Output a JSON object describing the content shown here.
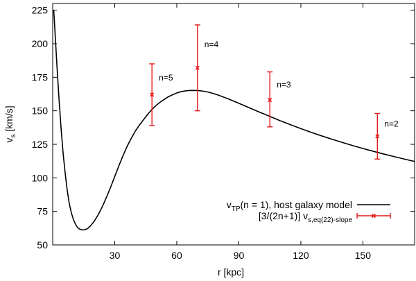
{
  "chart_data": {
    "type": "line",
    "title": "",
    "xlabel": "r [kpc]",
    "ylabel": {
      "main": "v",
      "sub": "s",
      "unit": " [km/s]"
    },
    "xlim": [
      0,
      175
    ],
    "ylim": [
      50,
      230
    ],
    "xticks": [
      30,
      60,
      90,
      120,
      150
    ],
    "yticks": [
      50,
      75,
      100,
      125,
      150,
      175,
      200,
      225
    ],
    "grid": false,
    "legend_position": "bottom-right",
    "series": [
      {
        "name": "vTP(n = 1), host galaxy model",
        "legend": {
          "pre": "v",
          "sub": "TP",
          "post": "(n = 1), host galaxy model"
        },
        "type": "line",
        "color": "#000000",
        "x": [
          0.5,
          1,
          2,
          3,
          4,
          5,
          6,
          7,
          8,
          9,
          10,
          11,
          12,
          13,
          14,
          15,
          16,
          17,
          18,
          19,
          20,
          22,
          24,
          26,
          28,
          30,
          32,
          34,
          36,
          38,
          40,
          42,
          44,
          46,
          48,
          50,
          52,
          54,
          56,
          58,
          60,
          62,
          64,
          66,
          68,
          70,
          72,
          74,
          76,
          78,
          80,
          85,
          90,
          95,
          100,
          105,
          110,
          115,
          120,
          125,
          130,
          135,
          140,
          145,
          150,
          155,
          160,
          165,
          170,
          175
        ],
        "y": [
          225,
          212,
          185,
          160,
          138,
          119,
          104,
          91,
          81,
          74,
          69,
          65.5,
          63,
          61.8,
          61.3,
          61.2,
          61.6,
          62.4,
          63.8,
          65.5,
          67.5,
          72.5,
          78.5,
          85.5,
          93,
          101,
          109,
          116.5,
          123.5,
          129.5,
          135,
          139.5,
          143.5,
          147.5,
          151,
          154,
          156.5,
          158.5,
          160.5,
          162,
          163.3,
          164.2,
          164.8,
          165.1,
          165.2,
          165.1,
          164.8,
          164.3,
          163.6,
          162.7,
          161.7,
          158.8,
          155.6,
          152.3,
          149,
          145.8,
          142.6,
          139.6,
          136.7,
          133.9,
          131.3,
          128.8,
          126.4,
          124.1,
          121.9,
          119.8,
          117.8,
          115.9,
          114,
          112.2
        ]
      },
      {
        "name": "[3/(2n+1)] vs,eq(22)-slope",
        "legend": {
          "pre": "[3/(2n+1)] v",
          "sub": "s,eq(22)-slope",
          "post": ""
        },
        "type": "scatter-errorbar",
        "color": "#e41a1c",
        "points": [
          {
            "x": 48,
            "y": 162,
            "ylow": 139,
            "yhigh": 185,
            "label": "n=5"
          },
          {
            "x": 70,
            "y": 182,
            "ylow": 150,
            "yhigh": 214,
            "label": "n=4"
          },
          {
            "x": 105,
            "y": 158,
            "ylow": 138,
            "yhigh": 179,
            "label": "n=3"
          },
          {
            "x": 157,
            "y": 131,
            "ylow": 114,
            "yhigh": 148,
            "label": "n=2"
          }
        ]
      }
    ]
  }
}
